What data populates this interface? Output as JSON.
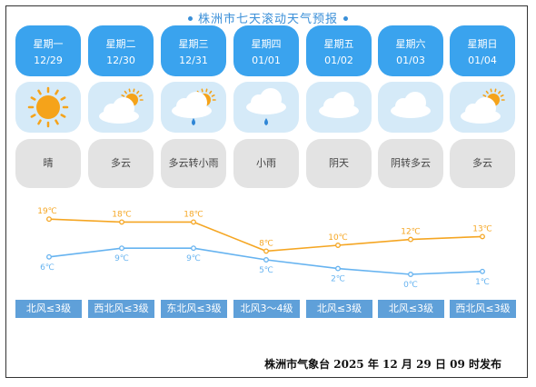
{
  "title": "株洲市七天滚动天气预报",
  "days": [
    {
      "weekday": "星期一",
      "date": "12/29",
      "icon": "sun-icon",
      "condition": "晴",
      "high": "19℃",
      "low": "6℃",
      "wind": "北风≤3级"
    },
    {
      "weekday": "星期二",
      "date": "12/30",
      "icon": "partly-cloudy-icon",
      "condition": "多云",
      "high": "18℃",
      "low": "9℃",
      "wind": "西北风≤3级"
    },
    {
      "weekday": "星期三",
      "date": "12/31",
      "icon": "partly-cloudy-rain-icon",
      "condition": "多云转小雨",
      "high": "18℃",
      "low": "9℃",
      "wind": "东北风≤3级"
    },
    {
      "weekday": "星期四",
      "date": "01/01",
      "icon": "light-rain-icon",
      "condition": "小雨",
      "high": "8℃",
      "low": "5℃",
      "wind": "北风3～4级"
    },
    {
      "weekday": "星期五",
      "date": "01/02",
      "icon": "overcast-icon",
      "condition": "阴天",
      "high": "10℃",
      "low": "2℃",
      "wind": "北风≤3级"
    },
    {
      "weekday": "星期六",
      "date": "01/03",
      "icon": "overcast-icon",
      "condition": "阴转多云",
      "high": "12℃",
      "low": "0℃",
      "wind": "北风≤3级"
    },
    {
      "weekday": "星期日",
      "date": "01/04",
      "icon": "partly-cloudy-icon",
      "condition": "多云",
      "high": "13℃",
      "low": "1℃",
      "wind": "西北风≤3级"
    }
  ],
  "chart_data": {
    "type": "line",
    "series": [
      {
        "values": [
          19,
          18,
          18,
          8,
          10,
          12,
          13
        ],
        "color": "#f5a623"
      },
      {
        "values": [
          6,
          9,
          9,
          5,
          2,
          0,
          1
        ],
        "color": "#66b3f0"
      }
    ]
  },
  "footer": "株洲市气象台 2025 年 12 月 29 日 09 时发布",
  "colors": {
    "title": "#3a8fd8",
    "day_header": "#3aa3ee",
    "icon_bg": "#d5eaf8",
    "condition_bg": "#e3e3e3",
    "wind_bg": "#5fa0d9",
    "high_line": "#f5a623",
    "low_line": "#66b3f0"
  }
}
